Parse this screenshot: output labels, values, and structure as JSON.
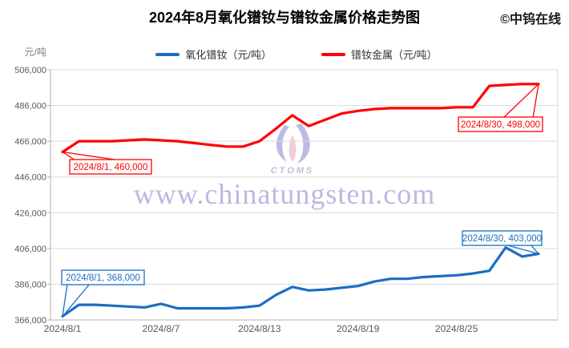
{
  "header": {
    "title": "2024年8月氧化镨钕与镨钕金属价格走势图",
    "copyright": "©中钨在线"
  },
  "axis": {
    "unit": "元/吨",
    "yticks": [
      "506,000",
      "486,000",
      "466,000",
      "446,000",
      "426,000",
      "406,000",
      "386,000",
      "366,000"
    ],
    "xticks": [
      "2024/8/1",
      "2024/8/7",
      "2024/8/13",
      "2024/8/19",
      "2024/8/25"
    ]
  },
  "legend": {
    "items": [
      {
        "label": "氧化镨钕（元/吨）",
        "color": "#1b6ec2"
      },
      {
        "label": "镨钕金属（元/吨）",
        "color": "#fe0000"
      }
    ]
  },
  "watermark": {
    "site": "www.chinatungsten.com",
    "logo": "CTOMS"
  },
  "chart_data": {
    "type": "line",
    "title": "2024年8月氧化镨钕与镨钕金属价格走势图",
    "ylabel": "元/吨",
    "ylim": [
      366000,
      506000
    ],
    "ytick_step": 20000,
    "grid": "horizontal",
    "legend_position": "top",
    "x_dates": [
      "2024/8/1",
      "2024/8/2",
      "2024/8/3",
      "2024/8/4",
      "2024/8/5",
      "2024/8/6",
      "2024/8/7",
      "2024/8/8",
      "2024/8/9",
      "2024/8/10",
      "2024/8/11",
      "2024/8/12",
      "2024/8/13",
      "2024/8/14",
      "2024/8/15",
      "2024/8/16",
      "2024/8/17",
      "2024/8/18",
      "2024/8/19",
      "2024/8/20",
      "2024/8/21",
      "2024/8/22",
      "2024/8/23",
      "2024/8/24",
      "2024/8/25",
      "2024/8/26",
      "2024/8/27",
      "2024/8/28",
      "2024/8/29",
      "2024/8/30"
    ],
    "xtick_days": [
      1,
      7,
      13,
      19,
      25
    ],
    "series": [
      {
        "name": "氧化镨钕（元/吨）",
        "color": "#1b6ec2",
        "values": [
          368000,
          374500,
          374500,
          374000,
          373500,
          373000,
          375000,
          372500,
          372500,
          372500,
          372500,
          373000,
          374000,
          380000,
          384500,
          382500,
          383000,
          384000,
          385000,
          387500,
          389000,
          389000,
          390000,
          390500,
          391000,
          392000,
          393500,
          406500,
          401500,
          403000
        ]
      },
      {
        "name": "镨钕金属（元/吨）",
        "color": "#fe0000",
        "values": [
          460000,
          466000,
          466000,
          466000,
          466500,
          467000,
          466500,
          466000,
          465000,
          464000,
          463000,
          463000,
          466000,
          473000,
          480500,
          474500,
          478000,
          481500,
          483000,
          484000,
          484500,
          484500,
          484500,
          484500,
          485000,
          485000,
          497000,
          497500,
          498000,
          498000
        ]
      }
    ],
    "annotations": [
      {
        "text": "2024/8/1, 460,000",
        "series": 1,
        "day": 1,
        "value": 460000
      },
      {
        "text": "2024/8/30, 498,000",
        "series": 1,
        "day": 30,
        "value": 498000
      },
      {
        "text": "2024/8/1, 368,000",
        "series": 0,
        "day": 1,
        "value": 368000
      },
      {
        "text": "2024/8/30, 403,000",
        "series": 0,
        "day": 30,
        "value": 403000
      }
    ]
  }
}
